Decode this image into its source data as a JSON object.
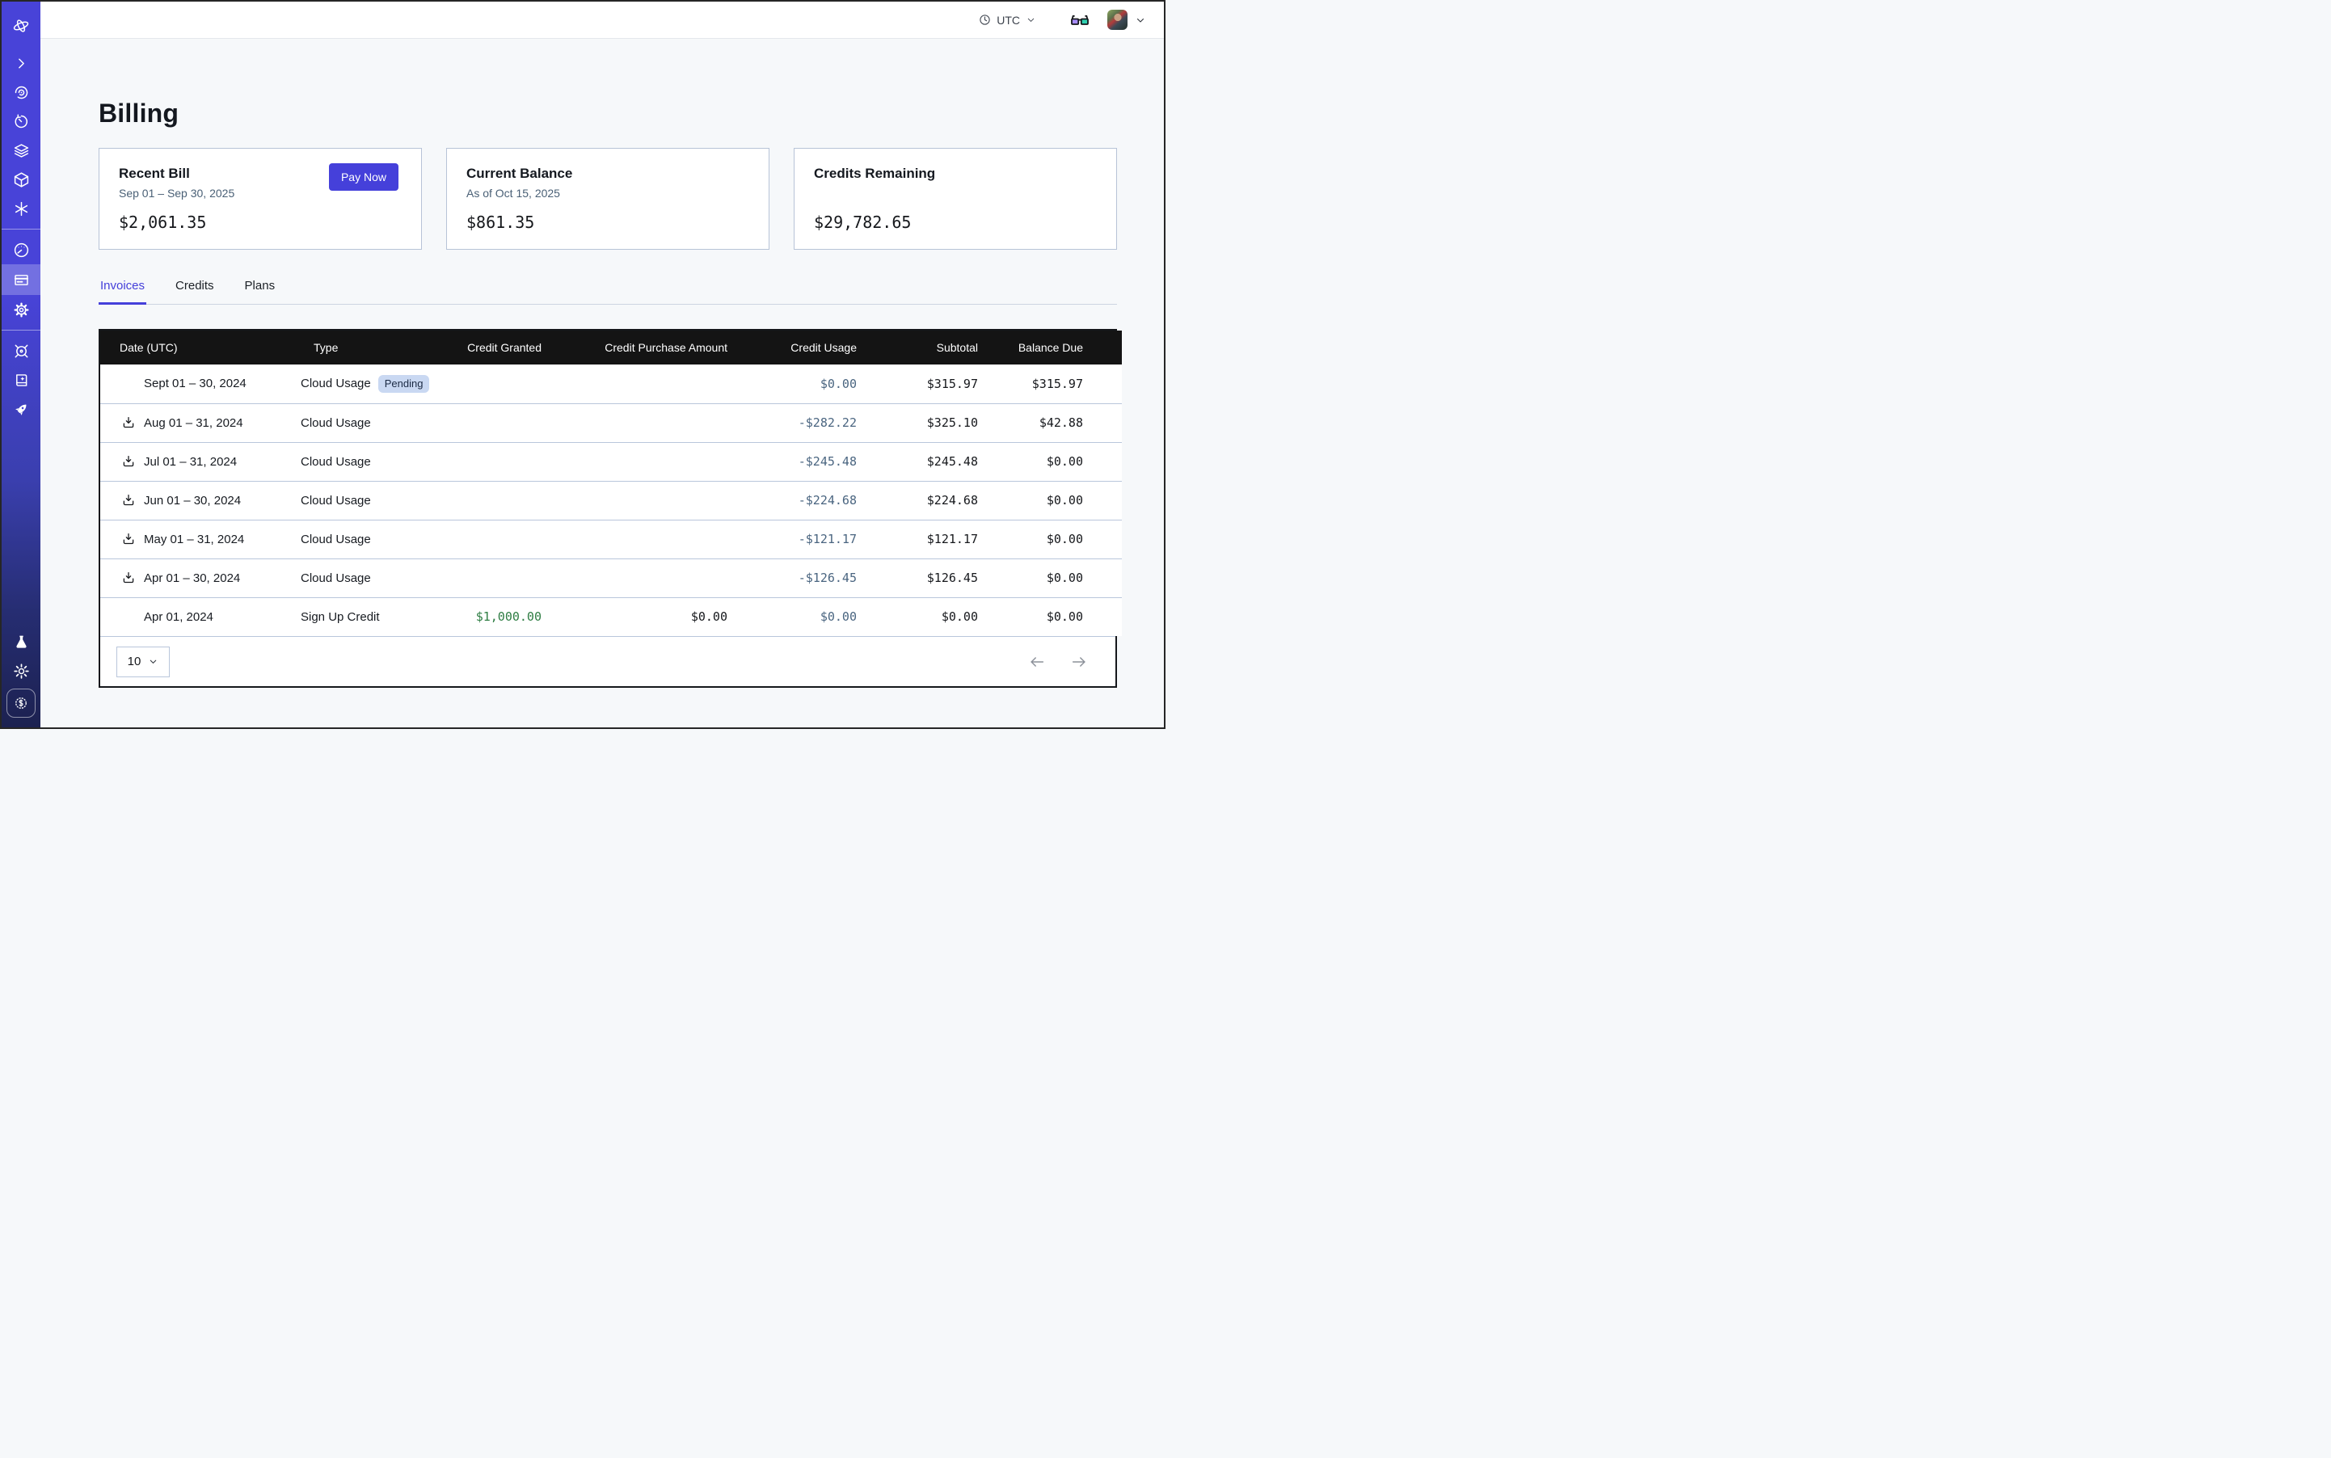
{
  "topbar": {
    "timezone_label": "UTC",
    "icons": [
      "clock-icon",
      "chevron-down-icon",
      "glasses-icon",
      "avatar",
      "chevron-down-icon"
    ]
  },
  "sidebar": {
    "active_item": "billing",
    "icons": [
      "logo-icon",
      "expand-chevron-icon",
      "insights-eye-icon",
      "history-timer-icon",
      "layers-icon",
      "cube-icon",
      "asterisk-icon",
      "usage-gauge-icon",
      "billing-card-icon",
      "settings-gear-icon",
      "helm-icon",
      "docs-book-icon",
      "rocket-icon",
      "labs-flask-icon",
      "theme-sun-icon",
      "credits-dollar-badge-icon"
    ]
  },
  "page": {
    "title": "Billing"
  },
  "cards": {
    "recent_bill": {
      "title": "Recent Bill",
      "subtitle": "Sep 01 – Sep 30, 2025",
      "amount": "$2,061.35",
      "pay_button": "Pay Now"
    },
    "current_balance": {
      "title": "Current Balance",
      "subtitle": "As of Oct 15, 2025",
      "amount": "$861.35"
    },
    "credits_remaining": {
      "title": "Credits Remaining",
      "subtitle": "",
      "amount": "$29,782.65"
    }
  },
  "tabs": [
    {
      "label": "Invoices",
      "active": true
    },
    {
      "label": "Credits",
      "active": false
    },
    {
      "label": "Plans",
      "active": false
    }
  ],
  "table": {
    "columns": [
      {
        "label": "Date (UTC)",
        "align": "left"
      },
      {
        "label": "Type",
        "align": "left"
      },
      {
        "label": "Credit Granted",
        "align": "right"
      },
      {
        "label": "Credit Purchase Amount",
        "align": "right"
      },
      {
        "label": "Credit Usage",
        "align": "right"
      },
      {
        "label": "Subtotal",
        "align": "right"
      },
      {
        "label": "Balance Due",
        "align": "right"
      }
    ],
    "rows": [
      {
        "date": "Sept 01 – 30, 2024",
        "download": false,
        "type": "Cloud Usage",
        "badge": "Pending",
        "granted": "",
        "purchase": "",
        "usage": "$0.00",
        "subtotal": "$315.97",
        "balance": "$315.97"
      },
      {
        "date": "Aug 01 – 31, 2024",
        "download": true,
        "type": "Cloud Usage",
        "badge": "",
        "granted": "",
        "purchase": "",
        "usage": "-$282.22",
        "subtotal": "$325.10",
        "balance": "$42.88"
      },
      {
        "date": "Jul 01 – 31, 2024",
        "download": true,
        "type": "Cloud Usage",
        "badge": "",
        "granted": "",
        "purchase": "",
        "usage": "-$245.48",
        "subtotal": "$245.48",
        "balance": "$0.00"
      },
      {
        "date": "Jun 01 – 30, 2024",
        "download": true,
        "type": "Cloud Usage",
        "badge": "",
        "granted": "",
        "purchase": "",
        "usage": "-$224.68",
        "subtotal": "$224.68",
        "balance": "$0.00"
      },
      {
        "date": "May 01 – 31, 2024",
        "download": true,
        "type": "Cloud Usage",
        "badge": "",
        "granted": "",
        "purchase": "",
        "usage": "-$121.17",
        "subtotal": "$121.17",
        "balance": "$0.00"
      },
      {
        "date": "Apr 01 – 30, 2024",
        "download": true,
        "type": "Cloud Usage",
        "badge": "",
        "granted": "",
        "purchase": "",
        "usage": "-$126.45",
        "subtotal": "$126.45",
        "balance": "$0.00"
      },
      {
        "date": "Apr 01, 2024",
        "download": false,
        "type": "Sign Up Credit",
        "badge": "",
        "granted": "$1,000.00",
        "purchase": "$0.00",
        "usage": "$0.00",
        "subtotal": "$0.00",
        "balance": "$0.00"
      }
    ]
  },
  "pagination": {
    "page_size": "10",
    "icons": [
      "chevron-down-icon",
      "arrow-left-icon",
      "arrow-right-icon"
    ]
  },
  "colors": {
    "accent": "#4540DA",
    "table_header_bg": "#141414",
    "credit_usage_text": "#4A6580",
    "credit_granted_green": "#2E7D43",
    "pending_badge_bg": "#C9D8F2",
    "pending_badge_text": "#1B2A44",
    "row_divider": "#B9C6DB",
    "sidebar_top": "#4843D8",
    "sidebar_bottom": "#1C2150"
  }
}
